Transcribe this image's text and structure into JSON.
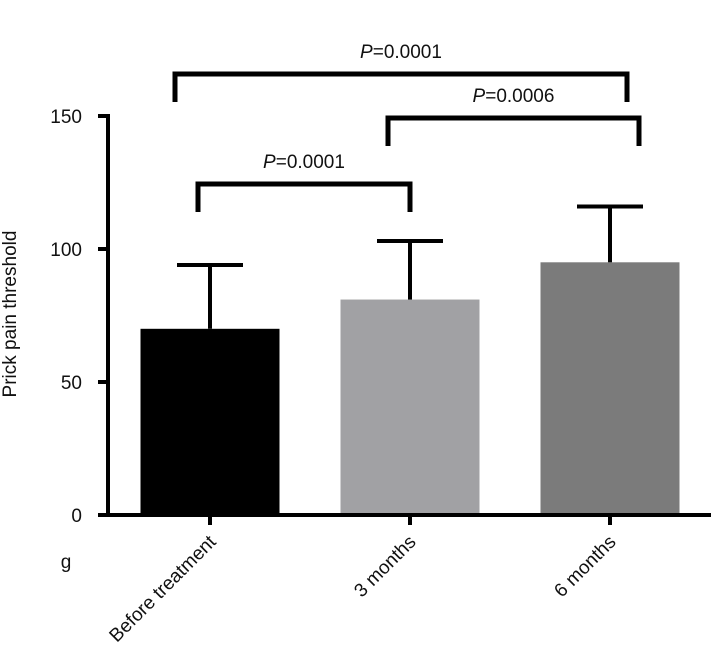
{
  "chart_data": {
    "type": "bar",
    "categories": [
      "Before treatment",
      "3 months",
      "6 months"
    ],
    "values": [
      70,
      81,
      95
    ],
    "errors": [
      24,
      22,
      21
    ],
    "colors": [
      "#000000",
      "#a1a1a4",
      "#7b7b7b"
    ],
    "ylabel": "Prick pain threshold",
    "unit": "g",
    "ylim": [
      0,
      150
    ],
    "yticks": [
      0,
      50,
      100,
      150
    ],
    "grid": false,
    "comparisons": [
      {
        "from": 0,
        "to": 2,
        "p_prefix": "P",
        "p_value": "=0.0001"
      },
      {
        "from": 1,
        "to": 2,
        "p_prefix": "P",
        "p_value": "=0.0006"
      },
      {
        "from": 0,
        "to": 1,
        "p_prefix": "P",
        "p_value": "=0.0001"
      }
    ]
  }
}
